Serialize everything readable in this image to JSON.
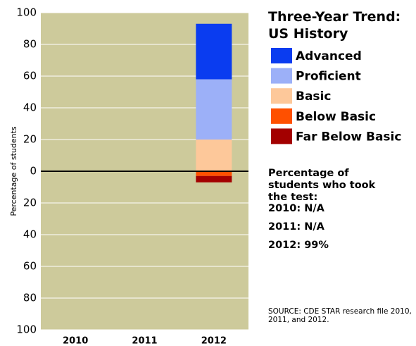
{
  "chart_data": {
    "type": "diverging-stacked-bar",
    "title": "Three-Year Trend: US History",
    "y_label": "Percentage of students",
    "categories": [
      "2010",
      "2011",
      "2012"
    ],
    "series": [
      {
        "name": "Advanced",
        "color": "#0a3cf0",
        "values": [
          null,
          null,
          35
        ]
      },
      {
        "name": "Proficient",
        "color": "#9cb0f8",
        "values": [
          null,
          null,
          38
        ]
      },
      {
        "name": "Basic",
        "color": "#fdc89a",
        "values": [
          null,
          null,
          20
        ]
      },
      {
        "name": "Below Basic",
        "color": "#ff5000",
        "values": [
          null,
          null,
          -3
        ]
      },
      {
        "name": "Far Below Basic",
        "color": "#a30000",
        "values": [
          null,
          null,
          -4
        ]
      }
    ],
    "ylim": [
      -100,
      100
    ],
    "yticks": [
      {
        "value": -100,
        "label": "100"
      },
      {
        "value": -80,
        "label": "80"
      },
      {
        "value": -60,
        "label": "60"
      },
      {
        "value": -40,
        "label": "40"
      },
      {
        "value": -20,
        "label": "20"
      },
      0,
      20,
      40,
      60,
      80,
      100
    ],
    "grid": true,
    "plot_background": "#cdca9b",
    "participation_title": "Percentage of students who took the test:",
    "participation": [
      "2010: N/A",
      "2011: N/A",
      "2012: 99%"
    ],
    "source": "SOURCE: CDE STAR research file 2010, 2011, and 2012."
  }
}
